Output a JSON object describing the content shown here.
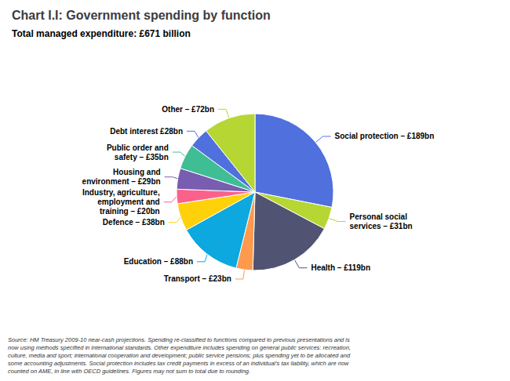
{
  "chart_data": {
    "type": "pie",
    "title": "Chart I.I: Government spending by function",
    "subtitle": "Total managed expenditure: £671 billion",
    "categories": [
      "Social protection – £189bn",
      "Personal social\nservices – £31bn",
      "Health – £119bn",
      "Transport – £23bn",
      "Education – £88bn",
      "Defence – £38bn",
      "Industry, agriculture,\nemployment and\ntraining – £20bn",
      "Housing and\nenvironment – £29bn",
      "Public order and\nsafety – £35bn",
      "Debt interest £28bn",
      "Other – £72bn"
    ],
    "values": [
      189,
      31,
      119,
      23,
      88,
      38,
      20,
      29,
      35,
      28,
      72
    ],
    "annotations": [
      "Source: HM Treasury 2009-10 near-cash projections. Spending re-classified to functions compared to previous presentations and is\nnow using methods specified in international standards. Other expenditure includes spending on general public services: recreation,\nculture, media and sport; international cooperation and development; public service pensions; plus spending yet to be allocated and\nsome accounting adjustments. Social protection includes tax credit payments in excess of an individual’s tax liability, which are now\ncounted on AME, in line with OECD guidelines. Figures may not sum to total due to rounding."
    ]
  }
}
